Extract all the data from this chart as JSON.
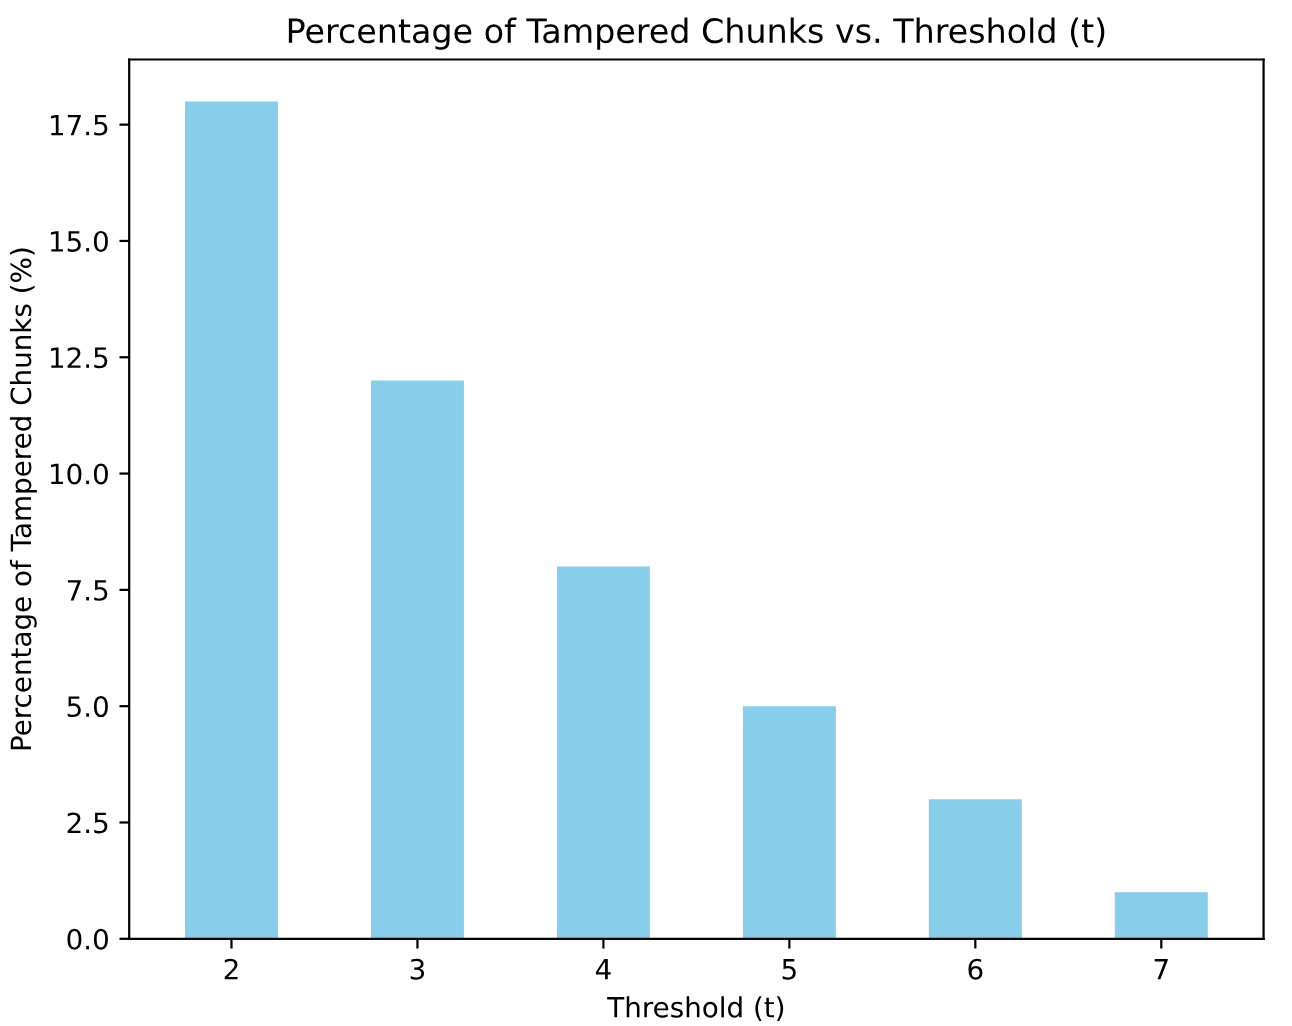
{
  "chart_data": {
    "type": "bar",
    "title": "Percentage of Tampered Chunks vs. Threshold (t)",
    "xlabel": "Threshold (t)",
    "ylabel": "Percentage of Tampered Chunks (%)",
    "categories": [
      "2",
      "3",
      "4",
      "5",
      "6",
      "7"
    ],
    "values": [
      18,
      12,
      8,
      5,
      3,
      1
    ],
    "color": "#87ceeb",
    "ylim": [
      0,
      18.9
    ],
    "yticks": [
      {
        "value": 0,
        "label": "0.0"
      },
      {
        "value": 2.5,
        "label": "2.5"
      },
      {
        "value": 5,
        "label": "5.0"
      },
      {
        "value": 7.5,
        "label": "7.5"
      },
      {
        "value": 10,
        "label": "10.0"
      },
      {
        "value": 12.5,
        "label": "12.5"
      },
      {
        "value": 15,
        "label": "15.0"
      },
      {
        "value": 17.5,
        "label": "17.5"
      }
    ],
    "grid": false
  }
}
